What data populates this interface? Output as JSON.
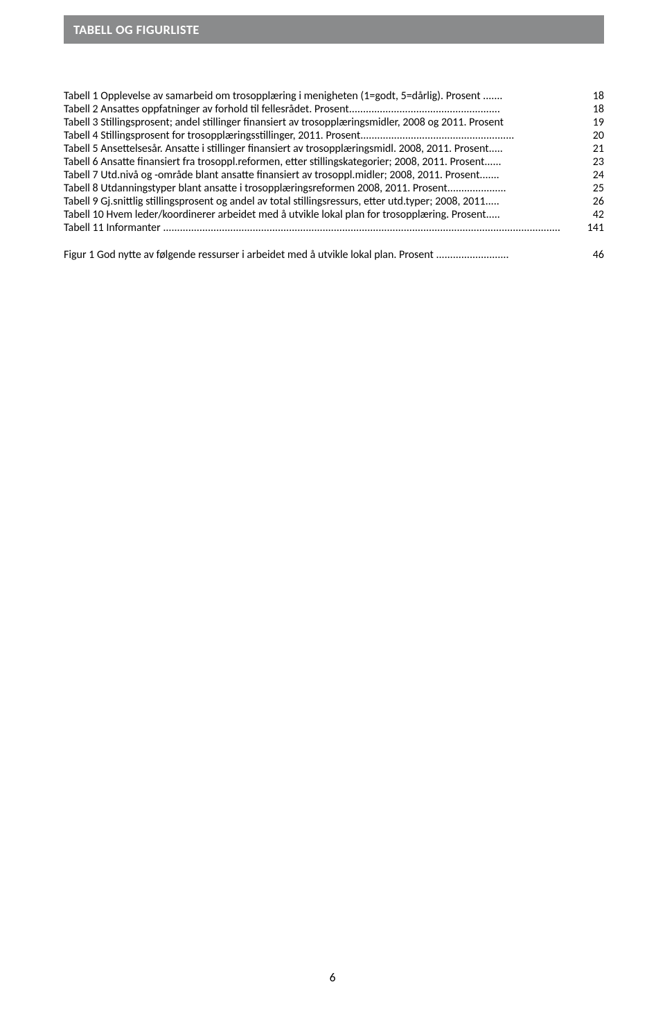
{
  "header": {
    "title": "TABELL OG FIGURLISTE"
  },
  "toc_tables": [
    {
      "text": "Tabell 1 Opplevelse av samarbeid om trosopplæring i menigheten (1=godt, 5=dårlig). Prosent",
      "dots": " ....... ",
      "page": "18"
    },
    {
      "text": "Tabell 2 Ansattes oppfatninger av forhold til fellesrådet. Prosent",
      "dots": "...................................................... ",
      "page": "18"
    },
    {
      "text": "Tabell 3 Stillingsprosent; andel stillinger finansiert av trosopplæringsmidler, 2008 og 2011. Prosent",
      "dots": "",
      "page": "19",
      "fullline": true
    },
    {
      "text": "Tabell 4 Stillingsprosent for trosopplæringsstillinger, 2011. Prosent",
      "dots": "....................................................... ",
      "page": "20"
    },
    {
      "text": "Tabell 5 Ansettelsesår. Ansatte i stillinger finansiert av trosopplæringsmidl. 2008, 2011. Prosent",
      "dots": "..... ",
      "page": "21"
    },
    {
      "text": "Tabell 6 Ansatte finansiert fra trosoppl.reformen, etter stillingskategorier; 2008, 2011. Prosent",
      "dots": "...... ",
      "page": "23"
    },
    {
      "text": "Tabell 7 Utd.nivå og -område blant ansatte finansiert av trosoppl.midler; 2008, 2011. Prosent",
      "dots": "....... ",
      "page": "24"
    },
    {
      "text": "Tabell 8 Utdanningstyper blant ansatte i trosopplæringsreformen 2008, 2011. Prosent",
      "dots": "..................... ",
      "page": "25"
    },
    {
      "text": "Tabell 9 Gj.snittlig stillingsprosent og andel av total stillingsressurs, etter utd.typer; 2008, 2011",
      "dots": "..... ",
      "page": "26"
    },
    {
      "text": "Tabell 10 Hvem leder/koordinerer arbeidet med å utvikle lokal plan for trosopplæring. Prosent",
      "dots": "..... ",
      "page": "42"
    },
    {
      "text": "Tabell 11 Informanter",
      "dots": " .............................................................................................................................................. ",
      "page": "141"
    }
  ],
  "toc_figures": [
    {
      "text": "Figur 1 God nytte av følgende ressurser i arbeidet med å utvikle lokal plan. Prosent",
      "dots": " .......................... ",
      "page": "46"
    }
  ],
  "page_number": "6"
}
